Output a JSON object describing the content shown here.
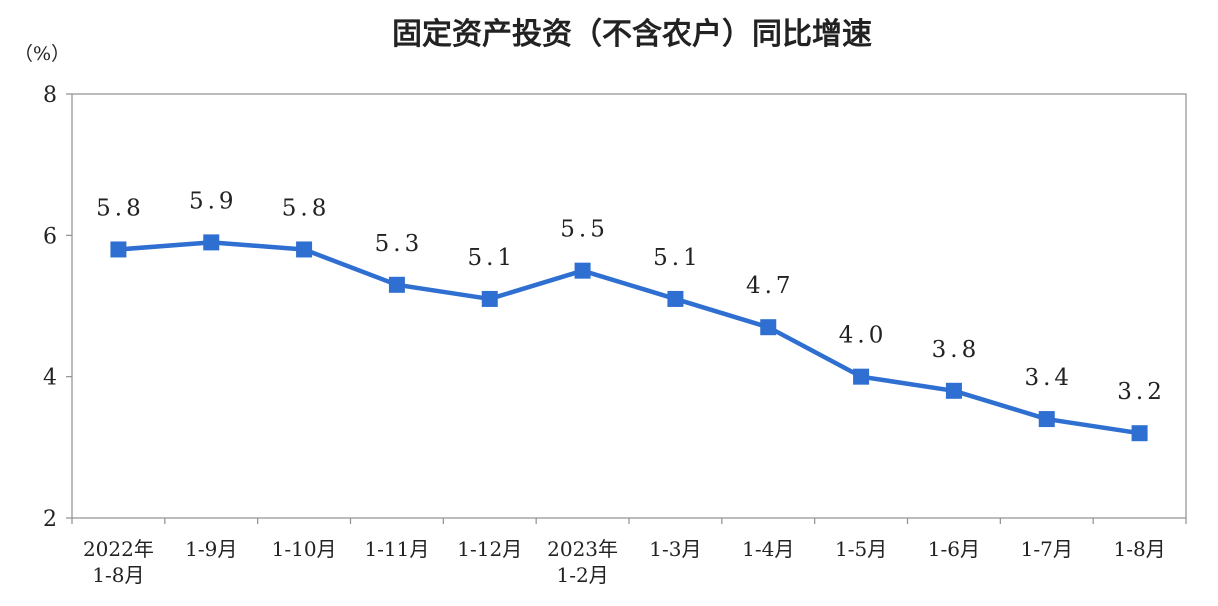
{
  "chart_data": {
    "type": "line",
    "title": "固定资产投资（不含农户）同比增速",
    "ylabel": "（%）",
    "ylim": [
      2,
      8
    ],
    "yticks": [
      2,
      4,
      6,
      8
    ],
    "categories": [
      [
        "2022年",
        "1-8月"
      ],
      [
        "1-9月"
      ],
      [
        "1-10月"
      ],
      [
        "1-11月"
      ],
      [
        "1-12月"
      ],
      [
        "2023年",
        "1-2月"
      ],
      [
        "1-3月"
      ],
      [
        "1-4月"
      ],
      [
        "1-5月"
      ],
      [
        "1-6月"
      ],
      [
        "1-7月"
      ],
      [
        "1-8月"
      ]
    ],
    "series": [
      {
        "values": [
          5.8,
          5.9,
          5.8,
          5.3,
          5.1,
          5.5,
          5.1,
          4.7,
          4.0,
          3.8,
          3.4,
          3.2
        ],
        "labels": [
          "5.8",
          "5.9",
          "5.8",
          "5.3",
          "5.1",
          "5.5",
          "5.1",
          "4.7",
          "4.0",
          "3.8",
          "3.4",
          "3.2"
        ],
        "color": "#2e6fd1"
      }
    ],
    "grid": false,
    "legend": "none"
  }
}
